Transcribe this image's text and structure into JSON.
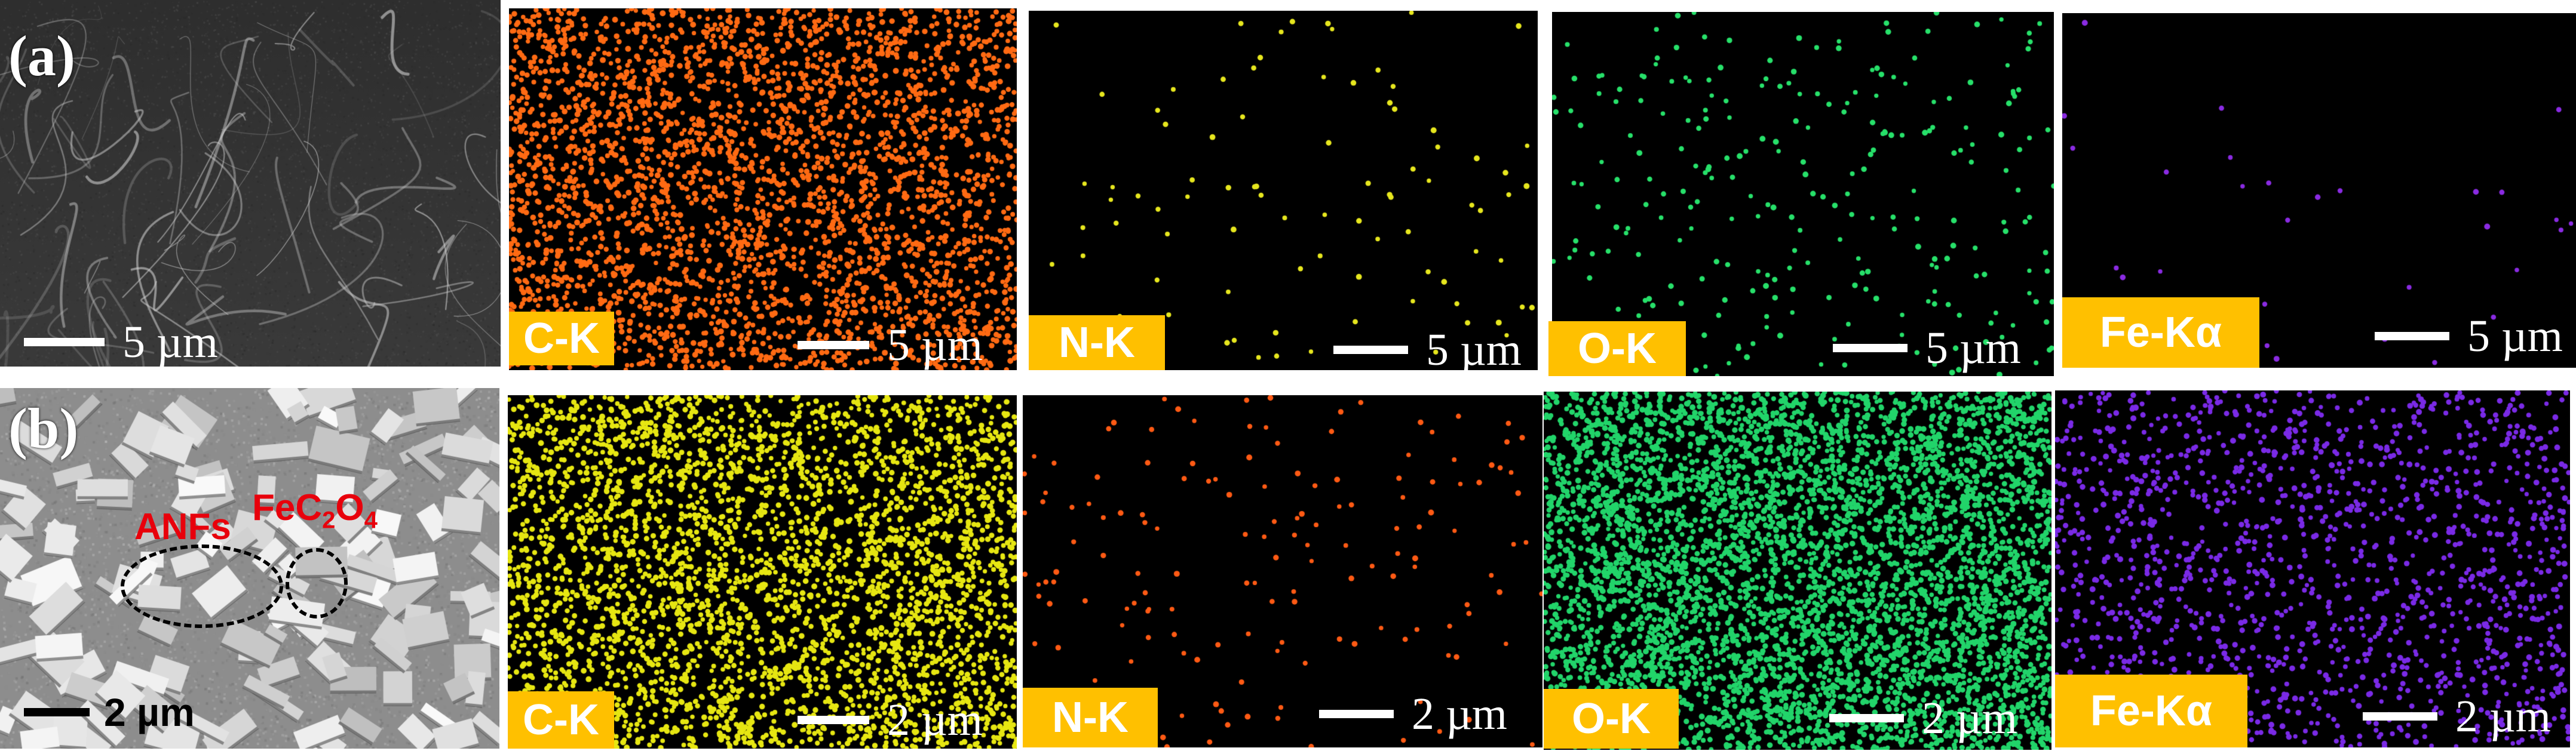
{
  "figure": {
    "rows": [
      {
        "label": "(a)",
        "sem": {
          "scale": "5 µm"
        },
        "maps": [
          {
            "element": "C-K",
            "scale": "5 µm",
            "color": "#ff6a13",
            "density": 3200
          },
          {
            "element": "N-K",
            "scale": "5 µm",
            "color": "#e6e61e",
            "density": 90
          },
          {
            "element": "O-K",
            "scale": "5 µm",
            "color": "#27e06a",
            "density": 260
          },
          {
            "element": "Fe-Kα",
            "scale": "5 µm",
            "color": "#8a2be2",
            "density": 30
          }
        ]
      },
      {
        "label": "(b)",
        "sem": {
          "scale": "2 µm",
          "annotations": {
            "anfs": "ANFs",
            "fe_c": "FeC",
            "fe_c_sub": "2",
            "fe_o": "O",
            "fe_o_sub": "4"
          }
        },
        "maps": [
          {
            "element": "C-K",
            "scale": "2 µm",
            "color": "#e6e612",
            "density": 3600
          },
          {
            "element": "N-K",
            "scale": "2 µm",
            "color": "#ff5a14",
            "density": 150
          },
          {
            "element": "O-K",
            "scale": "2 µm",
            "color": "#22d46a",
            "density": 5200
          },
          {
            "element": "Fe-Kα",
            "scale": "2 µm",
            "color": "#7a2ae6",
            "density": 1500
          }
        ]
      }
    ]
  }
}
